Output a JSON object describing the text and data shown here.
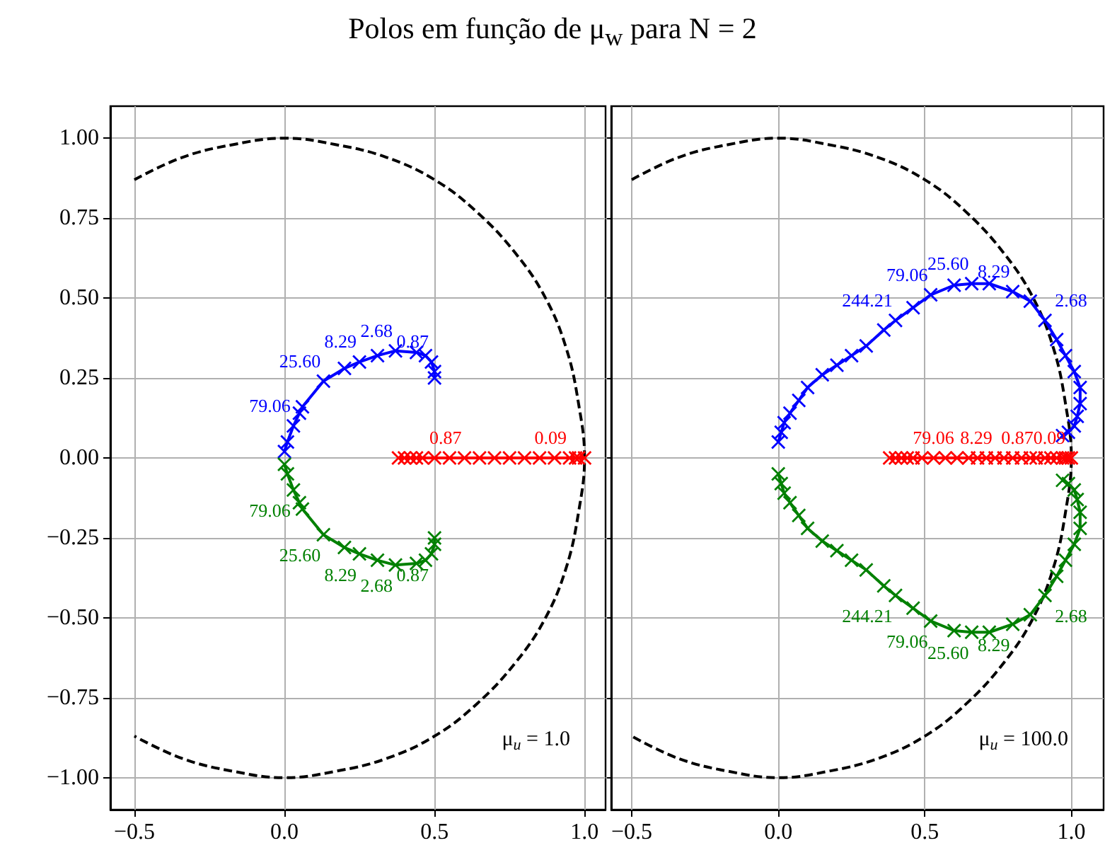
{
  "chart_data": [
    {
      "type": "line",
      "title": "Polos em função de μ$_{w}$ para N = 2",
      "xlim": [
        -0.58,
        1.07
      ],
      "xticks": [
        {
          "value": -0.5,
          "label": "−0.5"
        },
        {
          "value": 0,
          "label": "0.0"
        },
        {
          "value": 0.5,
          "label": "0.5"
        },
        {
          "value": 1,
          "label": "1.0"
        }
      ],
      "ylim": [
        -1.1,
        1.1
      ],
      "yticks": [
        {
          "value": -1,
          "label": "−1.00"
        },
        {
          "value": -0.75,
          "label": "−0.75"
        },
        {
          "value": -0.5,
          "label": "−0.50"
        },
        {
          "value": -0.25,
          "label": "−0.25"
        },
        {
          "value": 0,
          "label": "0.00"
        },
        {
          "value": 0.25,
          "label": "0.25"
        },
        {
          "value": 0.5,
          "label": "0.50"
        },
        {
          "value": 0.75,
          "label": "0.75"
        },
        {
          "value": 1,
          "label": "1.00"
        }
      ],
      "grid": true,
      "marker": "cross",
      "annotations": [
        "μ$_{u}$ = 1.0",
        {
          "text": "0.87",
          "x": 0.49,
          "y": 0.3
        },
        {
          "text": "2.68",
          "x": 0.37,
          "y": 0.335
        },
        {
          "text": "8.29",
          "x": 0.25,
          "y": 0.3
        },
        {
          "text": "25.60",
          "x": 0.13,
          "y": 0.24
        },
        {
          "text": "79.06",
          "x": 0.03,
          "y": 0.1
        },
        {
          "text": "0.87",
          "x": 0.49,
          "y": -0.3
        },
        {
          "text": "2.68",
          "x": 0.37,
          "y": -0.335
        },
        {
          "text": "8.29",
          "x": 0.25,
          "y": -0.3
        },
        {
          "text": "25.60",
          "x": 0.13,
          "y": -0.24
        },
        {
          "text": "79.06",
          "x": 0.03,
          "y": -0.1
        },
        {
          "text": "0.87",
          "x": 0.6,
          "y": 0
        },
        {
          "text": "0.09",
          "x": 0.95,
          "y": 0
        }
      ],
      "series": [
        {
          "color": "#000000",
          "marker": "none",
          "line_style": "dashed",
          "x": [
            -0.5,
            -0.34,
            -0.17,
            0,
            0.17,
            0.34,
            0.5,
            0.64,
            0.77,
            0.87,
            0.94,
            0.98,
            1,
            0.98,
            0.94,
            0.87,
            0.77,
            0.64,
            0.5,
            0.34,
            0.17,
            0,
            -0.17,
            -0.34,
            -0.5
          ],
          "values": [
            0.87,
            0.94,
            0.98,
            1,
            0.98,
            0.94,
            0.87,
            0.77,
            0.64,
            0.5,
            0.34,
            0.17,
            0,
            -0.17,
            -0.34,
            -0.5,
            -0.64,
            -0.77,
            -0.87,
            -0.94,
            -0.98,
            -1,
            -0.98,
            -0.94,
            -0.87
          ]
        },
        {
          "color": "#0000ff",
          "x": [
            0.5,
            0.5,
            0.49,
            0.47,
            0.44,
            0.37,
            0.31,
            0.25,
            0.2,
            0.13,
            0.06,
            0.05,
            0.03,
            0.01,
            0
          ],
          "values": [
            0.25,
            0.27,
            0.3,
            0.32,
            0.33,
            0.335,
            0.32,
            0.3,
            0.28,
            0.24,
            0.16,
            0.14,
            0.1,
            0.05,
            0.02
          ]
        },
        {
          "color": "#008000",
          "x": [
            0.5,
            0.5,
            0.49,
            0.47,
            0.44,
            0.37,
            0.31,
            0.25,
            0.2,
            0.13,
            0.06,
            0.05,
            0.03,
            0.01,
            0
          ],
          "values": [
            -0.25,
            -0.27,
            -0.3,
            -0.32,
            -0.33,
            -0.335,
            -0.32,
            -0.3,
            -0.28,
            -0.24,
            -0.16,
            -0.14,
            -0.1,
            -0.05,
            -0.02
          ]
        },
        {
          "color": "#ff0000",
          "x": [
            0.38,
            0.4,
            0.42,
            0.44,
            0.46,
            0.5,
            0.55,
            0.6,
            0.65,
            0.7,
            0.75,
            0.8,
            0.85,
            0.9,
            0.95,
            0.97,
            0.98,
            1.0
          ],
          "values": [
            0,
            0,
            0,
            0,
            0,
            0,
            0,
            0,
            0,
            0,
            0,
            0,
            0,
            0,
            0,
            0,
            0,
            0
          ]
        }
      ]
    },
    {
      "type": "line",
      "xlim": [
        -0.57,
        1.11
      ],
      "xticks": [
        {
          "value": -0.5,
          "label": "−0.5"
        },
        {
          "value": 0,
          "label": "0.0"
        },
        {
          "value": 0.5,
          "label": "0.5"
        },
        {
          "value": 1,
          "label": "1.0"
        }
      ],
      "ylim": [
        -1.1,
        1.1
      ],
      "yticks": [
        -1,
        -0.75,
        -0.5,
        -0.25,
        0,
        0.25,
        0.5,
        0.75,
        1
      ],
      "grid": true,
      "marker": "cross",
      "tick_labels": "x",
      "annotations": [
        "μ$_{u}$ = 100.0",
        {
          "text": "244.21",
          "x": 0.4,
          "y": 0.43
        },
        {
          "text": "79.06",
          "x": 0.52,
          "y": 0.51
        },
        {
          "text": "25.60",
          "x": 0.66,
          "y": 0.545
        },
        {
          "text": "8.29",
          "x": 0.8,
          "y": 0.52
        },
        {
          "text": "2.68",
          "x": 0.91,
          "y": 0.43
        },
        {
          "text": "244.21",
          "x": 0.4,
          "y": -0.43
        },
        {
          "text": "79.06",
          "x": 0.52,
          "y": -0.51
        },
        {
          "text": "25.60",
          "x": 0.66,
          "y": -0.545
        },
        {
          "text": "8.29",
          "x": 0.8,
          "y": -0.52
        },
        {
          "text": "2.68",
          "x": 0.91,
          "y": -0.43
        },
        {
          "text": "79.06",
          "x": 0.61,
          "y": 0
        },
        {
          "text": "8.29",
          "x": 0.74,
          "y": 0
        },
        {
          "text": "0.87",
          "x": 0.88,
          "y": 0
        },
        {
          "text": "0.09",
          "x": 0.99,
          "y": 0
        }
      ],
      "series": [
        {
          "color": "#000000",
          "marker": "none",
          "line_style": "dashed",
          "x": [
            -0.5,
            -0.34,
            -0.17,
            0,
            0.17,
            0.34,
            0.5,
            0.64,
            0.77,
            0.87,
            0.94,
            0.98,
            1,
            0.98,
            0.94,
            0.87,
            0.77,
            0.64,
            0.5,
            0.34,
            0.17,
            0,
            -0.17,
            -0.34,
            -0.5
          ],
          "values": [
            0.87,
            0.94,
            0.98,
            1,
            0.98,
            0.94,
            0.87,
            0.77,
            0.64,
            0.5,
            0.34,
            0.17,
            0,
            -0.17,
            -0.34,
            -0.5,
            -0.64,
            -0.77,
            -0.87,
            -0.94,
            -0.98,
            -1,
            -0.98,
            -0.94,
            -0.87
          ]
        },
        {
          "color": "#0000ff",
          "x": [
            0,
            0.01,
            0.02,
            0.04,
            0.07,
            0.1,
            0.15,
            0.2,
            0.25,
            0.3,
            0.36,
            0.4,
            0.46,
            0.52,
            0.6,
            0.66,
            0.72,
            0.8,
            0.86,
            0.91,
            0.95,
            0.98,
            1.01,
            1.03,
            1.03,
            1.02,
            1.01,
            0.99,
            0.97
          ],
          "values": [
            0.05,
            0.08,
            0.11,
            0.14,
            0.18,
            0.22,
            0.26,
            0.29,
            0.32,
            0.35,
            0.4,
            0.43,
            0.47,
            0.51,
            0.54,
            0.545,
            0.545,
            0.52,
            0.49,
            0.43,
            0.37,
            0.32,
            0.27,
            0.22,
            0.17,
            0.13,
            0.1,
            0.08,
            0.07
          ]
        },
        {
          "color": "#008000",
          "x": [
            0,
            0.01,
            0.02,
            0.04,
            0.07,
            0.1,
            0.15,
            0.2,
            0.25,
            0.3,
            0.36,
            0.4,
            0.46,
            0.52,
            0.6,
            0.66,
            0.72,
            0.8,
            0.86,
            0.91,
            0.95,
            0.98,
            1.01,
            1.03,
            1.03,
            1.02,
            1.01,
            0.99,
            0.97
          ],
          "values": [
            -0.05,
            -0.08,
            -0.11,
            -0.14,
            -0.18,
            -0.22,
            -0.26,
            -0.29,
            -0.32,
            -0.35,
            -0.4,
            -0.43,
            -0.47,
            -0.51,
            -0.54,
            -0.545,
            -0.545,
            -0.52,
            -0.49,
            -0.43,
            -0.37,
            -0.32,
            -0.27,
            -0.22,
            -0.17,
            -0.13,
            -0.1,
            -0.08,
            -0.07
          ]
        },
        {
          "color": "#ff0000",
          "x": [
            0.38,
            0.4,
            0.42,
            0.44,
            0.46,
            0.49,
            0.53,
            0.57,
            0.61,
            0.65,
            0.68,
            0.71,
            0.74,
            0.77,
            0.8,
            0.83,
            0.86,
            0.88,
            0.91,
            0.93,
            0.95,
            0.97,
            0.98,
            0.99,
            1.0
          ],
          "values": [
            0,
            0,
            0,
            0,
            0,
            0,
            0,
            0,
            0,
            0,
            0,
            0,
            0,
            0,
            0,
            0,
            0,
            0,
            0,
            0,
            0,
            0,
            0,
            0,
            0
          ]
        }
      ]
    }
  ]
}
